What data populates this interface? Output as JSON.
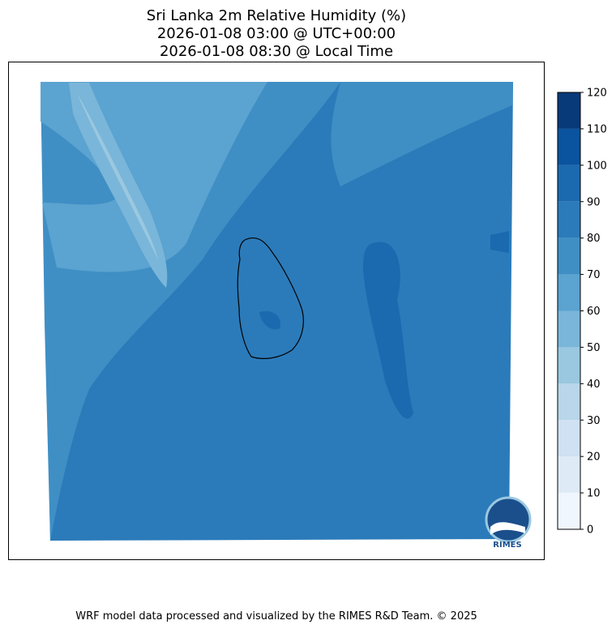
{
  "title": [
    "Sri Lanka 2m Relative Humidity (%)",
    "2026-01-08 03:00 @ UTC+00:00",
    "2026-01-08 08:30 @ Local Time"
  ],
  "colorbar": {
    "lim": [
      0,
      120
    ],
    "ticks": [
      0,
      10,
      20,
      30,
      40,
      50,
      60,
      70,
      80,
      90,
      100,
      110,
      120
    ],
    "colors": [
      "#f0f6fd",
      "#deebf7",
      "#cfe1f2",
      "#b9d6ea",
      "#9ac8e0",
      "#7ab6d9",
      "#5ba3d0",
      "#3f8fc5",
      "#2b7bba",
      "#1b69af",
      "#0a539e",
      "#083a7a"
    ]
  },
  "logo": "RIMES",
  "footer": "WRF model data processed and visualized by the RIMES R&D Team. © 2025"
}
